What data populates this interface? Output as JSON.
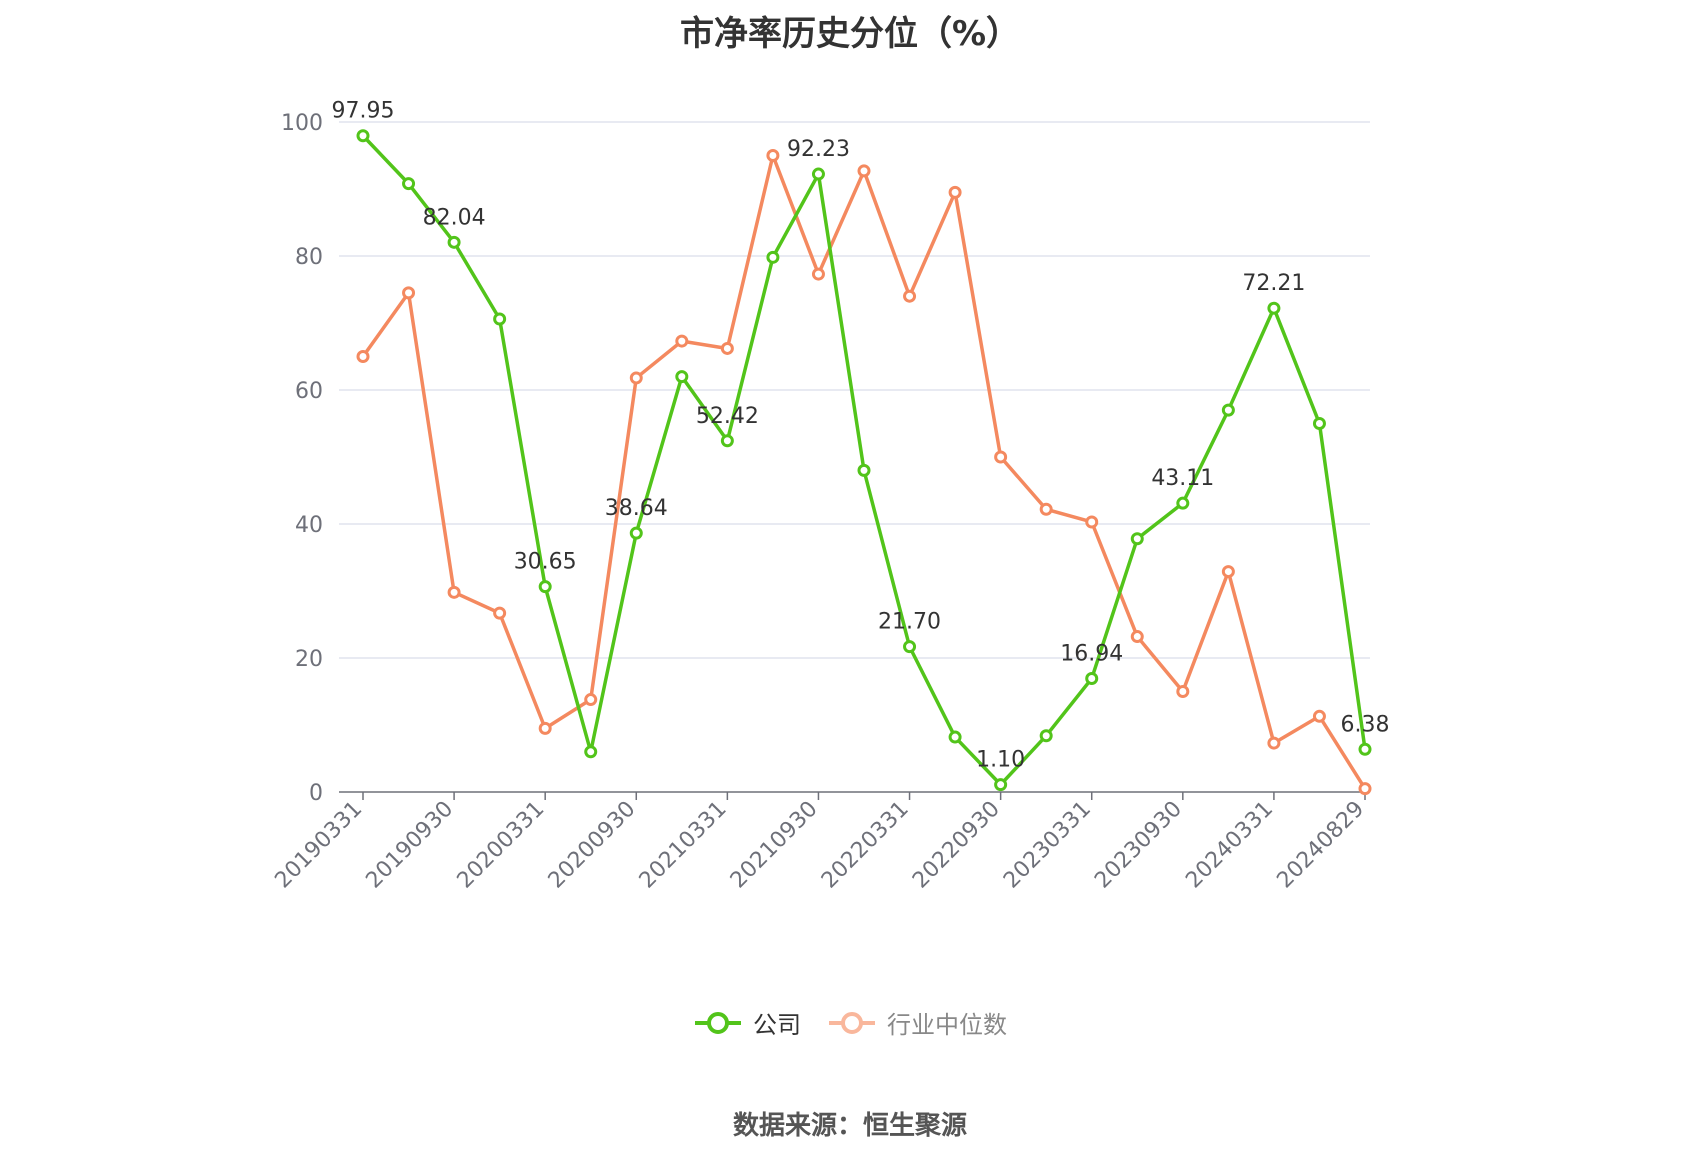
{
  "chart_data": {
    "type": "line",
    "title": "市净率历史分位（%）",
    "xlabel": "",
    "ylabel": "",
    "ylim": [
      0,
      100
    ],
    "yticks": [
      0,
      20,
      40,
      60,
      80,
      100
    ],
    "x": [
      "20190331",
      "20190630",
      "20190930",
      "20191231",
      "20200331",
      "20200630",
      "20200930",
      "20201231",
      "20210331",
      "20210630",
      "20210930",
      "20211231",
      "20220331",
      "20220630",
      "20220930",
      "20221231",
      "20230331",
      "20230630",
      "20230930",
      "20231231",
      "20240331",
      "20240630",
      "20240829"
    ],
    "x_tick_labels": [
      "20190331",
      "20190930",
      "20200331",
      "20200930",
      "20210331",
      "20210930",
      "20220331",
      "20220930",
      "20230331",
      "20230930",
      "20240331",
      "20240829"
    ],
    "grid": true,
    "legend_position": "bottom",
    "series": [
      {
        "name": "公司",
        "color": "#52c41a",
        "values": [
          97.95,
          90.8,
          82.04,
          70.6,
          30.65,
          6.0,
          38.64,
          62.0,
          52.42,
          79.8,
          92.23,
          48.0,
          21.7,
          8.2,
          1.1,
          8.4,
          16.94,
          37.8,
          43.11,
          57.0,
          72.21,
          55.0,
          6.38
        ],
        "labels": [
          "97.95",
          "",
          "82.04",
          "",
          "30.65",
          "",
          "38.64",
          "",
          "52.42",
          "",
          "92.23",
          "",
          "21.70",
          "",
          "1.10",
          "",
          "16.94",
          "",
          "43.11",
          "",
          "72.21",
          "",
          "6.38"
        ]
      },
      {
        "name": "行业中位数",
        "color": "#f4895f",
        "values": [
          65.0,
          74.5,
          29.8,
          26.7,
          9.5,
          13.8,
          61.8,
          67.3,
          66.2,
          95.0,
          77.3,
          92.7,
          74.0,
          89.5,
          50.0,
          42.2,
          40.3,
          23.2,
          15.0,
          32.9,
          7.3,
          11.3,
          0.5
        ]
      }
    ]
  },
  "source_text": "数据来源：恒生聚源"
}
